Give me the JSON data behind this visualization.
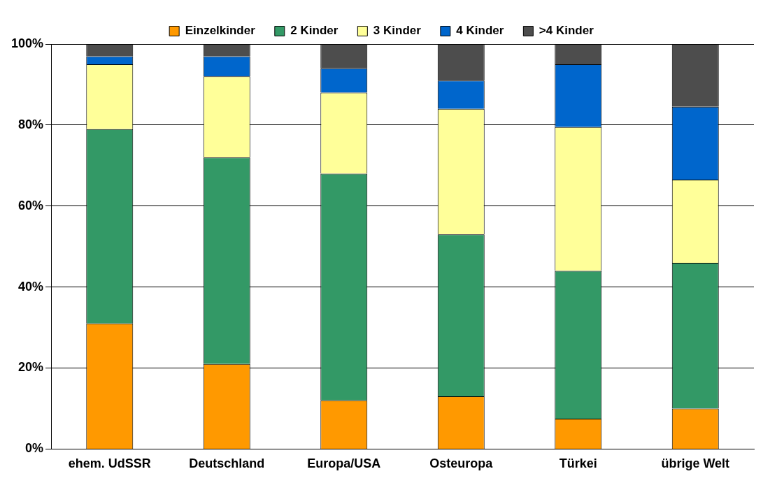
{
  "chart_data": {
    "type": "bar",
    "stacked": true,
    "categories": [
      "ehem. UdSSR",
      "Deutschland",
      "Europa/USA",
      "Osteuropa",
      "Türkei",
      "übrige Welt"
    ],
    "series": [
      {
        "name": "Einzelkinder",
        "color": "#ff9900",
        "values": [
          31,
          21,
          12,
          13,
          7.5,
          10
        ]
      },
      {
        "name": "2 Kinder",
        "color": "#339966",
        "values": [
          48,
          51,
          56,
          40,
          36.5,
          36
        ]
      },
      {
        "name": "3 Kinder",
        "color": "#ffff99",
        "values": [
          16,
          20,
          20,
          31,
          35.5,
          20.5
        ]
      },
      {
        "name": "4 Kinder",
        "color": "#0066cc",
        "values": [
          2,
          5,
          6,
          7,
          15.5,
          18
        ]
      },
      {
        "name": ">4 Kinder",
        "color": "#4d4d4d",
        "values": [
          3,
          3,
          6,
          9,
          5,
          15.5
        ]
      }
    ],
    "ylim": [
      0,
      100
    ],
    "yticks": [
      {
        "value": 0,
        "label": "0%"
      },
      {
        "value": 20,
        "label": "20%"
      },
      {
        "value": 40,
        "label": "40%"
      },
      {
        "value": 60,
        "label": "60%"
      },
      {
        "value": 80,
        "label": "80%"
      },
      {
        "value": 100,
        "label": "100%"
      }
    ],
    "grid": "y",
    "legend": "top"
  }
}
